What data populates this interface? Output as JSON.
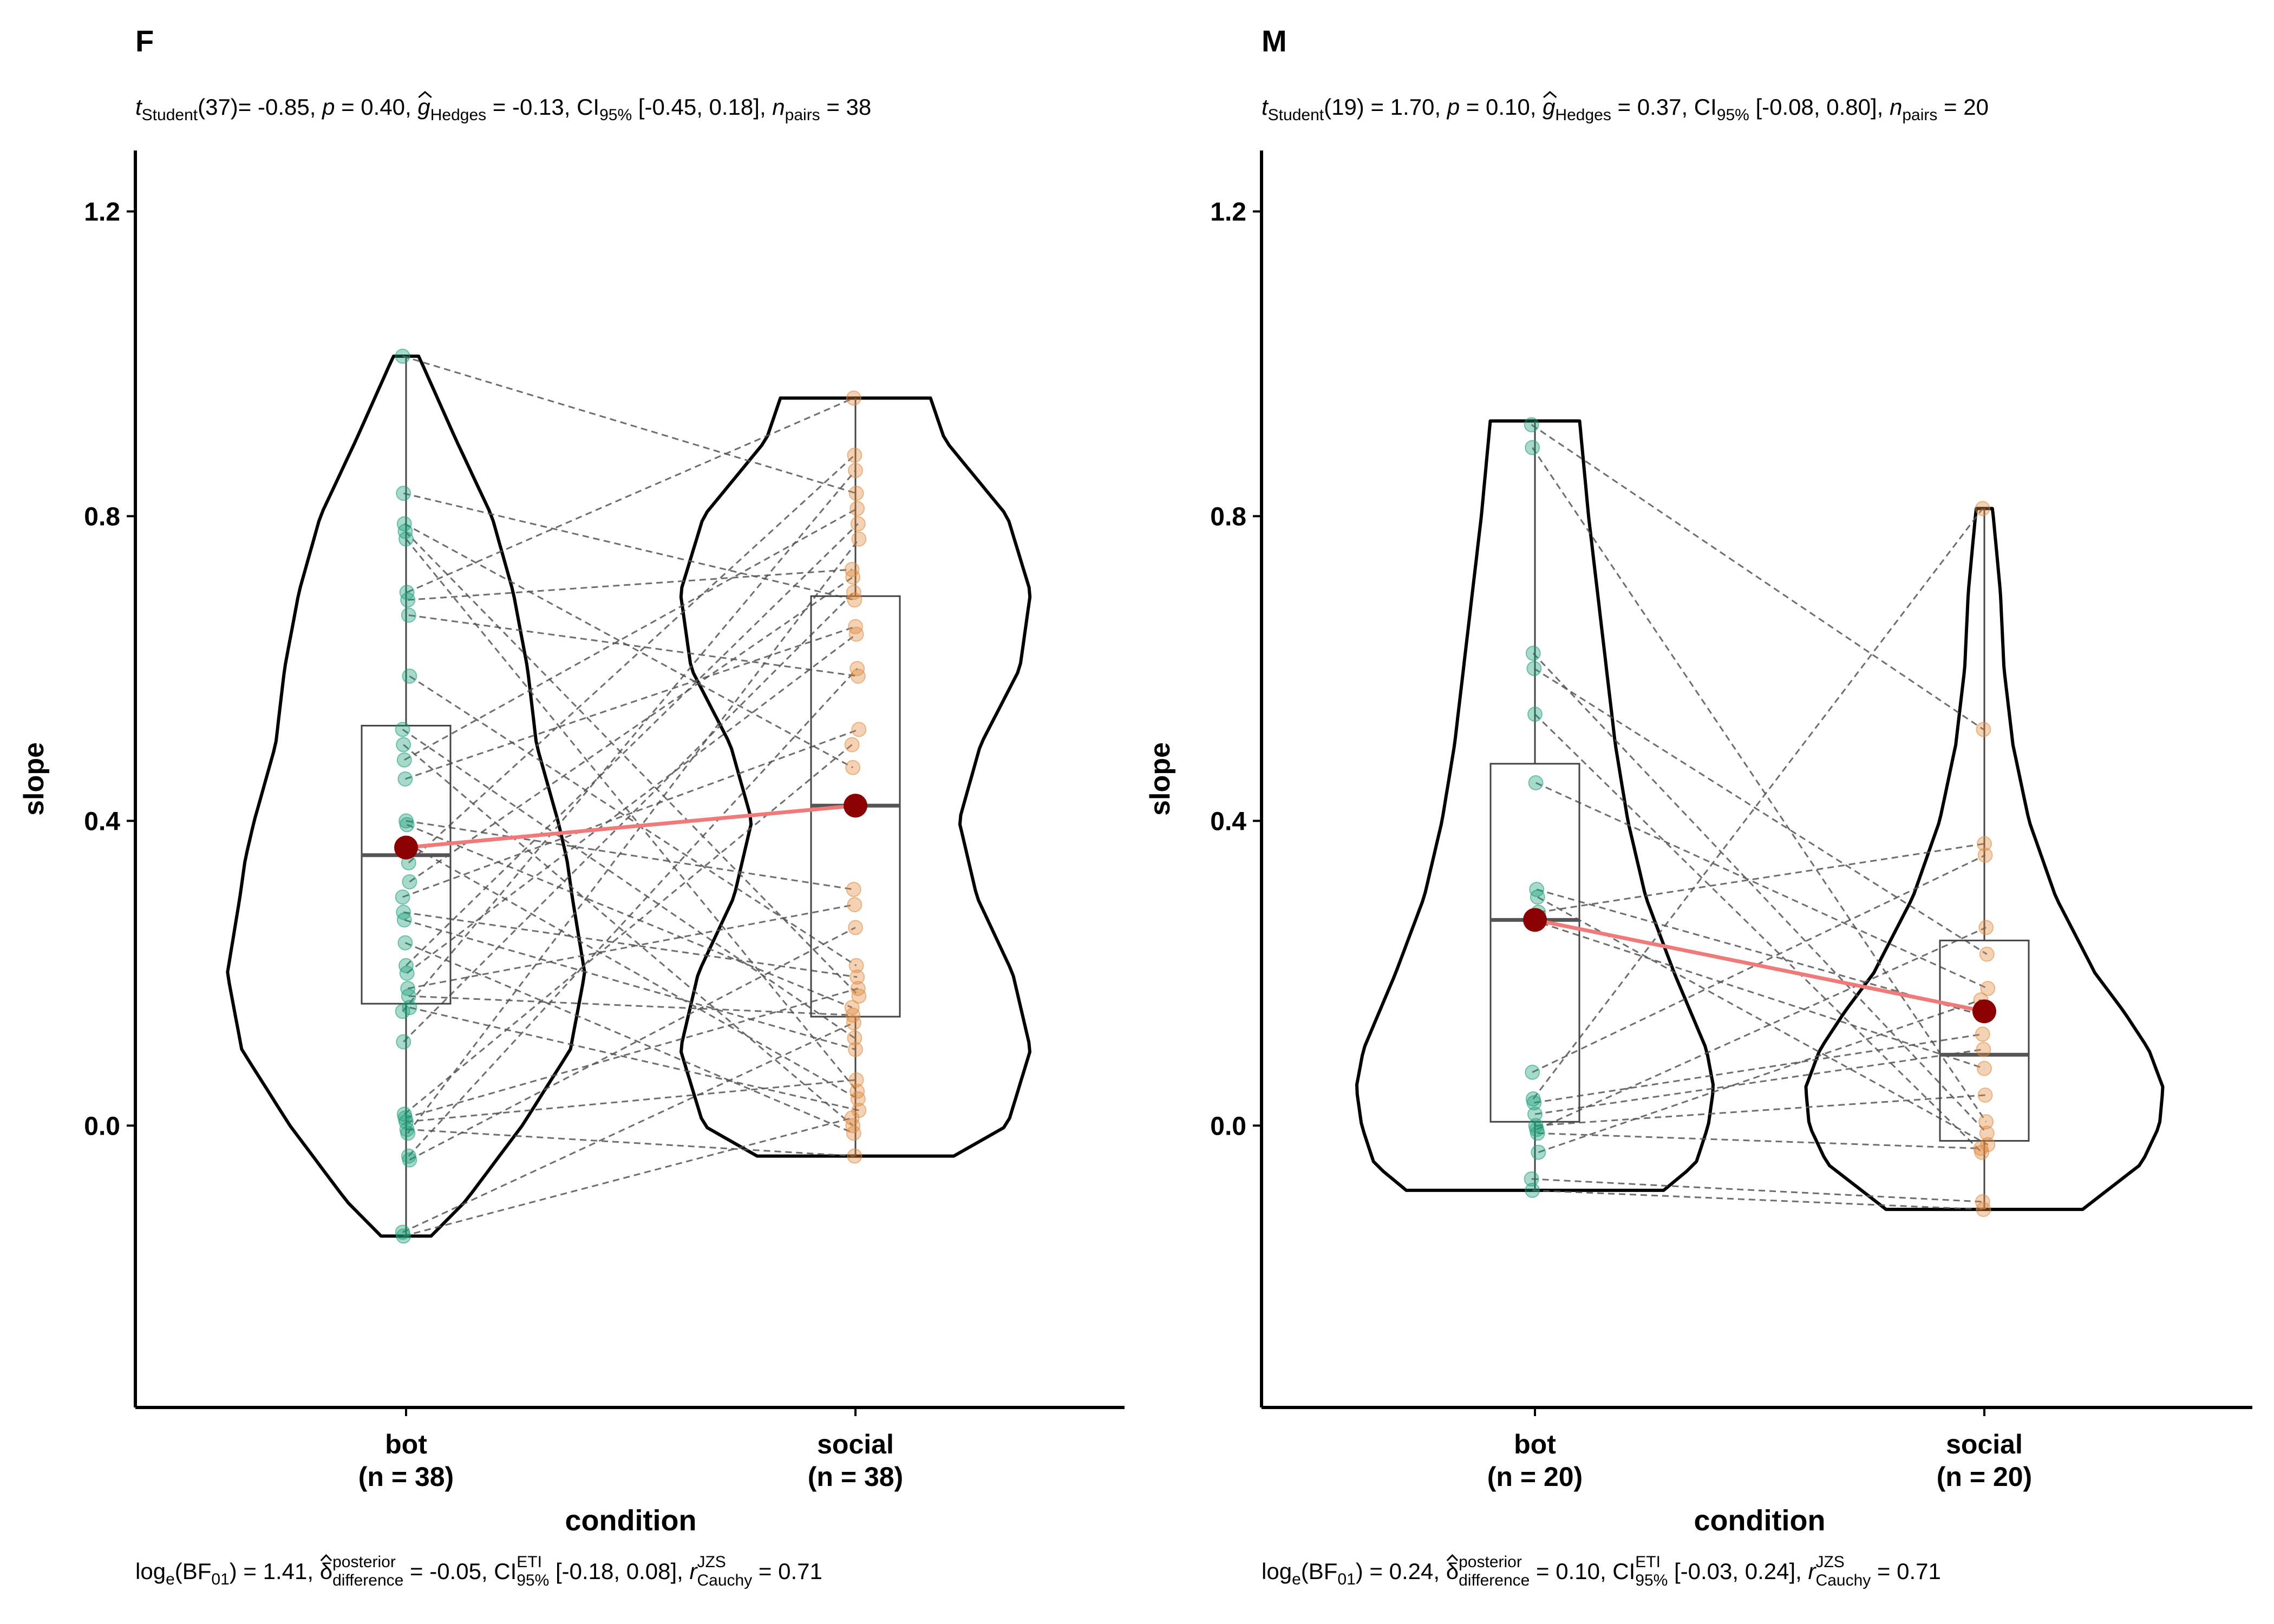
{
  "figure": {
    "panels": [
      {
        "title": "F",
        "subtitle": {
          "t_label": "t",
          "t_sub": "Student",
          "df": "(37)",
          "t_value": "= -0.85, ",
          "p_label": "p",
          "p_value": " = 0.40, ",
          "g_label": "g",
          "g_sub": "Hedges",
          "g_value": " = -0.13, CI",
          "ci_sub": "95%",
          "ci_value": " [-0.45, 0.18], ",
          "n_label": "n",
          "n_sub": "pairs",
          "n_value": " = 38"
        },
        "caption": {
          "log": "log",
          "log_sub": "e",
          "bf_open": "(BF",
          "bf_sub": "01",
          "bf_value": ") = 1.41, ",
          "delta_label": "δ",
          "delta_sup": "posterior",
          "delta_sub": "difference",
          "delta_value": " = -0.05, CI",
          "eti_sup": "ETI",
          "eti_sub": "95%",
          "ci_value": " [-0.18, 0.08], ",
          "r_label": "r",
          "r_sup": "JZS",
          "r_sub": "Cauchy",
          "r_value": " = 0.71"
        }
      },
      {
        "title": "M",
        "subtitle": {
          "t_label": "t",
          "t_sub": "Student",
          "df": "(19)",
          "t_value": " = 1.70, ",
          "p_label": "p",
          "p_value": " = 0.10, ",
          "g_label": "g",
          "g_sub": "Hedges",
          "g_value": " = 0.37, CI",
          "ci_sub": "95%",
          "ci_value": " [-0.08, 0.80], ",
          "n_label": "n",
          "n_sub": "pairs",
          "n_value": " = 20"
        },
        "caption": {
          "log": "log",
          "log_sub": "e",
          "bf_open": "(BF",
          "bf_sub": "01",
          "bf_value": ") = 0.24, ",
          "delta_label": "δ",
          "delta_sup": "posterior",
          "delta_sub": "difference",
          "delta_value": " = 0.10, CI",
          "eti_sup": "ETI",
          "eti_sub": "95%",
          "ci_value": " [-0.03, 0.24], ",
          "r_label": "r",
          "r_sup": "JZS",
          "r_sub": "Cauchy",
          "r_value": " = 0.71"
        }
      }
    ]
  },
  "chart_data": [
    {
      "type": "violin-box-paired",
      "title": "F",
      "xlabel": "condition",
      "ylabel": "slope",
      "ylim": [
        -0.37,
        1.28
      ],
      "yticks": [
        0.0,
        0.4,
        0.8,
        1.2
      ],
      "ytick_labels": [
        "0.0",
        "0.4",
        "0.8",
        "1.2"
      ],
      "categories": [
        "bot\n(n = 38)",
        "social\n(n = 38)"
      ],
      "category_labels": [
        [
          "bot",
          "(n = 38)"
        ],
        [
          "social",
          "(n = 38)"
        ]
      ],
      "colors": {
        "bot": "#1b9e77",
        "social": "#e08a3c",
        "mean": "#8b0000",
        "mean_line": "#f07a7a"
      },
      "means": [
        0.365,
        0.42
      ],
      "boxes": [
        {
          "q1": 0.16,
          "median": 0.355,
          "q3": 0.525,
          "min": -0.145,
          "max": 1.01
        },
        {
          "q1": 0.143,
          "median": 0.42,
          "q3": 0.695,
          "min": -0.04,
          "max": 0.955
        }
      ],
      "violins": [
        {
          "min": -0.145,
          "max": 1.01,
          "profile": [
            [
              -0.145,
              0.14
            ],
            [
              -0.1,
              0.33
            ],
            [
              0.0,
              0.65
            ],
            [
              0.1,
              0.92
            ],
            [
              0.2,
              1.0
            ],
            [
              0.3,
              0.93
            ],
            [
              0.35,
              0.9
            ],
            [
              0.4,
              0.85
            ],
            [
              0.5,
              0.73
            ],
            [
              0.6,
              0.68
            ],
            [
              0.7,
              0.6
            ],
            [
              0.8,
              0.48
            ],
            [
              0.9,
              0.28
            ],
            [
              1.0,
              0.09
            ],
            [
              1.01,
              0.07
            ]
          ]
        },
        {
          "min": -0.04,
          "max": 0.955,
          "profile": [
            [
              -0.04,
              0.55
            ],
            [
              0.0,
              0.85
            ],
            [
              0.1,
              0.98
            ],
            [
              0.2,
              0.88
            ],
            [
              0.3,
              0.68
            ],
            [
              0.4,
              0.58
            ],
            [
              0.5,
              0.7
            ],
            [
              0.6,
              0.92
            ],
            [
              0.7,
              0.98
            ],
            [
              0.8,
              0.85
            ],
            [
              0.9,
              0.5
            ],
            [
              0.955,
              0.42
            ]
          ]
        }
      ],
      "series": [
        {
          "name": "bot",
          "values": [
            1.01,
            0.83,
            0.79,
            0.78,
            0.77,
            0.7,
            0.69,
            0.67,
            0.59,
            0.52,
            0.5,
            0.48,
            0.455,
            0.4,
            0.395,
            0.37,
            0.345,
            0.32,
            0.3,
            0.28,
            0.27,
            0.24,
            0.21,
            0.2,
            0.18,
            0.17,
            0.155,
            0.15,
            0.11,
            0.015,
            0.01,
            0.005,
            -0.005,
            -0.01,
            -0.04,
            -0.045,
            -0.14,
            -0.145
          ]
        },
        {
          "name": "social",
          "values": [
            0.955,
            0.88,
            0.86,
            0.83,
            0.81,
            0.79,
            0.77,
            0.73,
            0.72,
            0.7,
            0.69,
            0.655,
            0.645,
            0.6,
            0.59,
            0.52,
            0.5,
            0.47,
            0.31,
            0.29,
            0.26,
            0.21,
            0.195,
            0.18,
            0.17,
            0.155,
            0.145,
            0.135,
            0.115,
            0.1,
            0.06,
            0.045,
            0.035,
            0.02,
            0.01,
            0.0,
            -0.01,
            -0.04
          ]
        }
      ]
    },
    {
      "type": "violin-box-paired",
      "title": "M",
      "xlabel": "condition",
      "ylabel": "slope",
      "ylim": [
        -0.37,
        1.28
      ],
      "yticks": [
        0.0,
        0.4,
        0.8,
        1.2
      ],
      "ytick_labels": [
        "0.0",
        "0.4",
        "0.8",
        "1.2"
      ],
      "categories": [
        "bot\n(n = 20)",
        "social\n(n = 20)"
      ],
      "category_labels": [
        [
          "bot",
          "(n = 20)"
        ],
        [
          "social",
          "(n = 20)"
        ]
      ],
      "colors": {
        "bot": "#1b9e77",
        "social": "#e08a3c",
        "mean": "#8b0000",
        "mean_line": "#f07a7a"
      },
      "means": [
        0.27,
        0.15
      ],
      "boxes": [
        {
          "q1": 0.005,
          "median": 0.27,
          "q3": 0.475,
          "min": -0.085,
          "max": 0.925
        },
        {
          "q1": -0.02,
          "median": 0.093,
          "q3": 0.243,
          "min": -0.11,
          "max": 0.81
        }
      ],
      "violins": [
        {
          "min": -0.085,
          "max": 0.925,
          "profile": [
            [
              -0.085,
              0.72
            ],
            [
              -0.05,
              0.9
            ],
            [
              0.0,
              0.97
            ],
            [
              0.05,
              1.0
            ],
            [
              0.1,
              0.96
            ],
            [
              0.2,
              0.78
            ],
            [
              0.3,
              0.62
            ],
            [
              0.4,
              0.52
            ],
            [
              0.5,
              0.45
            ],
            [
              0.6,
              0.4
            ],
            [
              0.7,
              0.35
            ],
            [
              0.8,
              0.3
            ],
            [
              0.9,
              0.26
            ],
            [
              0.925,
              0.25
            ]
          ]
        },
        {
          "min": -0.11,
          "max": 0.81,
          "profile": [
            [
              -0.11,
              0.55
            ],
            [
              -0.05,
              0.88
            ],
            [
              0.0,
              0.98
            ],
            [
              0.05,
              1.0
            ],
            [
              0.1,
              0.92
            ],
            [
              0.15,
              0.78
            ],
            [
              0.2,
              0.62
            ],
            [
              0.3,
              0.4
            ],
            [
              0.4,
              0.25
            ],
            [
              0.5,
              0.16
            ],
            [
              0.6,
              0.11
            ],
            [
              0.7,
              0.09
            ],
            [
              0.8,
              0.05
            ],
            [
              0.81,
              0.045
            ]
          ]
        }
      ],
      "series": [
        {
          "name": "bot",
          "values": [
            0.92,
            0.89,
            0.62,
            0.6,
            0.54,
            0.45,
            0.31,
            0.3,
            0.28,
            0.27,
            0.07,
            0.035,
            0.03,
            0.015,
            0.0,
            -0.005,
            -0.01,
            -0.035,
            -0.07,
            -0.085
          ]
        },
        {
          "name": "social",
          "values": [
            0.81,
            0.52,
            0.37,
            0.355,
            0.26,
            0.225,
            0.18,
            0.165,
            0.145,
            0.12,
            0.1,
            0.075,
            0.04,
            0.005,
            -0.01,
            -0.025,
            -0.03,
            -0.035,
            -0.1,
            -0.11
          ]
        }
      ],
      "pairs": [
        [
          0,
          1
        ],
        [
          1,
          13
        ],
        [
          2,
          14
        ],
        [
          3,
          5
        ],
        [
          4,
          17
        ],
        [
          5,
          6
        ],
        [
          6,
          8
        ],
        [
          7,
          15
        ],
        [
          8,
          2
        ],
        [
          9,
          11
        ],
        [
          10,
          3
        ],
        [
          11,
          0
        ],
        [
          12,
          9
        ],
        [
          13,
          10
        ],
        [
          14,
          12
        ],
        [
          15,
          4
        ],
        [
          16,
          16
        ],
        [
          17,
          7
        ],
        [
          18,
          18
        ],
        [
          19,
          19
        ]
      ]
    }
  ]
}
